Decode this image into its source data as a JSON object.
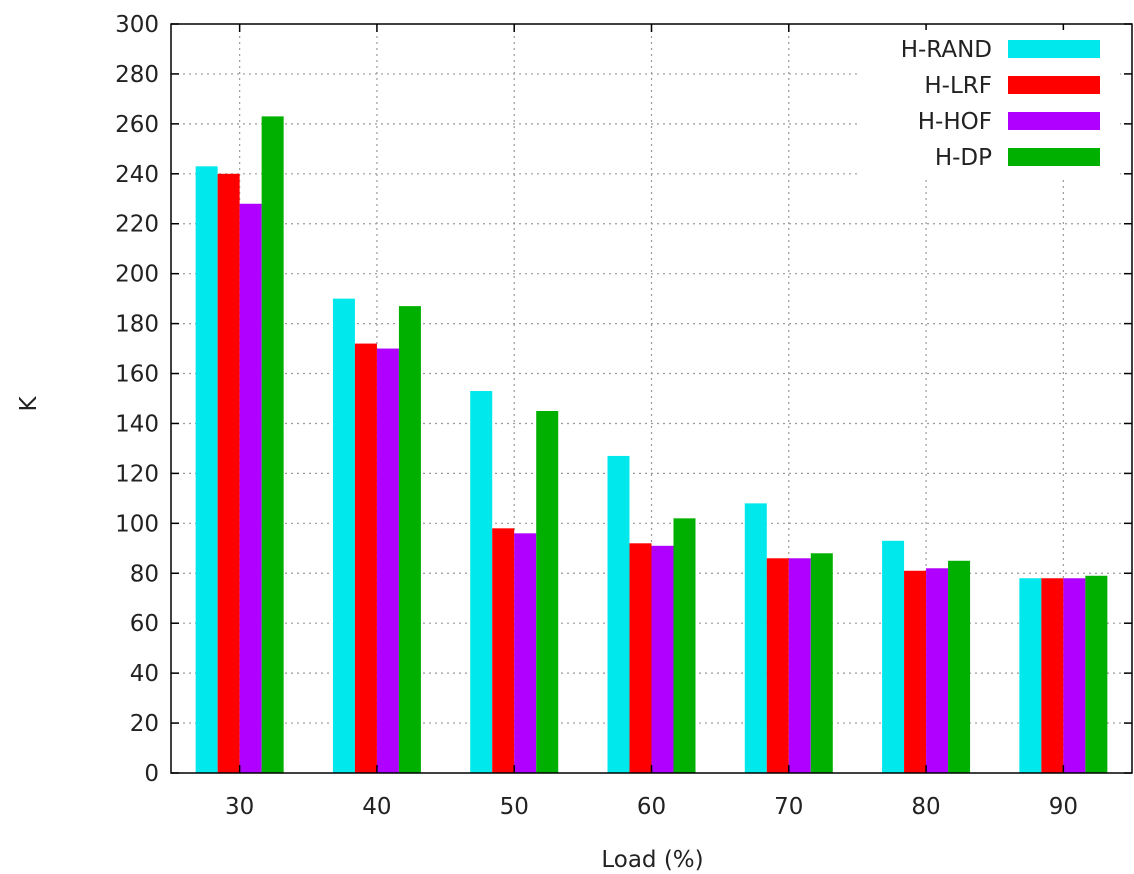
{
  "chart_data": {
    "type": "bar",
    "title": "",
    "xlabel": "Load (%)",
    "ylabel": "K",
    "categories": [
      "30",
      "40",
      "50",
      "60",
      "70",
      "80",
      "90"
    ],
    "ylim": [
      0,
      300
    ],
    "yticks": [
      0,
      20,
      40,
      60,
      80,
      100,
      120,
      140,
      160,
      180,
      200,
      220,
      240,
      260,
      280,
      300
    ],
    "grid": true,
    "legend_position": "top-right",
    "series": [
      {
        "name": "H-RAND",
        "color": "#00e8ec",
        "values": [
          243,
          190,
          153,
          127,
          108,
          93,
          78
        ]
      },
      {
        "name": "H-LRF",
        "color": "#ff0000",
        "values": [
          240,
          172,
          98,
          92,
          86,
          81,
          78
        ]
      },
      {
        "name": "H-HOF",
        "color": "#b000ff",
        "values": [
          228,
          170,
          96,
          91,
          86,
          82,
          78
        ]
      },
      {
        "name": "H-DP",
        "color": "#00b000",
        "values": [
          263,
          187,
          145,
          102,
          88,
          85,
          79
        ]
      }
    ]
  }
}
